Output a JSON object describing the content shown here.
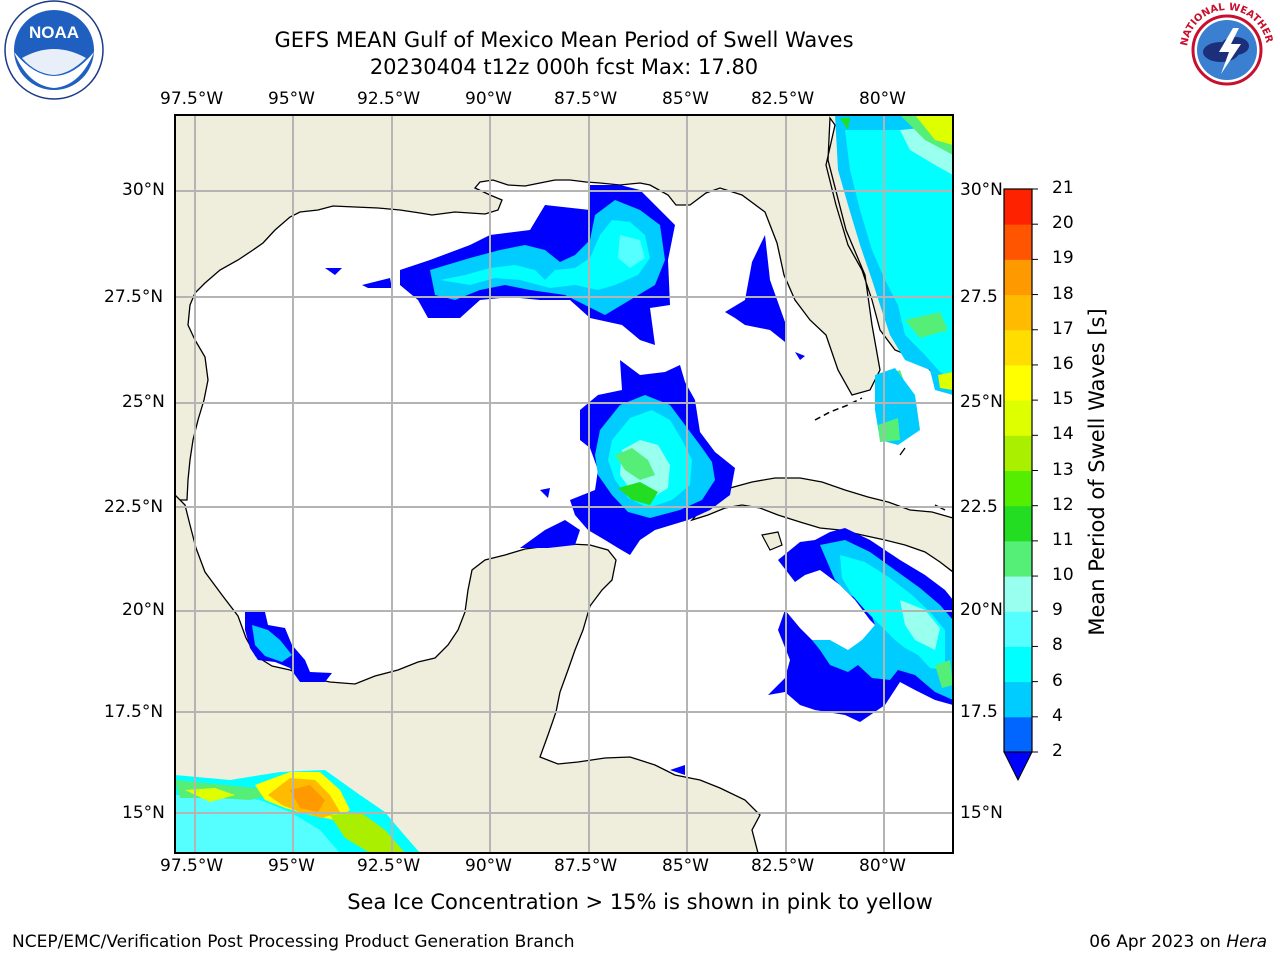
{
  "title": {
    "line1": "GEFS MEAN Gulf of Mexico Mean Period of Swell Waves",
    "line2": "20230404 t12z 000h fcst   Max: 17.80"
  },
  "map": {
    "lon_labels": [
      "97.5°W",
      "95°W",
      "92.5°W",
      "90°W",
      "87.5°W",
      "85°W",
      "82.5°W",
      "80°W"
    ],
    "lat_labels_left": [
      "30°N",
      "27.5°N",
      "25°N",
      "22.5°N",
      "20°N",
      "17.5°N",
      "15°N"
    ],
    "lat_labels_right": [
      "30°N",
      "27.5",
      "25°N",
      "22.5",
      "20°N",
      "17.5",
      "15°N"
    ],
    "extent": {
      "lon_min": -98,
      "lon_max": -78.3,
      "lat_min": 14,
      "lat_max": 31.8
    },
    "colors": {
      "land": "#efeedc",
      "ocean": "#ffffff",
      "grid": "#b4b4b4",
      "coast": "#000000"
    }
  },
  "colorbar": {
    "label": "Mean Period of Swell Waves [s]",
    "ticks": [
      "2",
      "4",
      "6",
      "8",
      "9",
      "10",
      "11",
      "12",
      "13",
      "14",
      "15",
      "16",
      "17",
      "18",
      "19",
      "20",
      "21"
    ],
    "colors": [
      "#0066ff",
      "#00ccff",
      "#00ffff",
      "#55ffff",
      "#99ffee",
      "#55ee77",
      "#22dd22",
      "#55ee00",
      "#aaee00",
      "#ddff00",
      "#ffff00",
      "#ffdd00",
      "#ffbb00",
      "#ff9900",
      "#ff5500",
      "#ff2200",
      "#ff0000"
    ],
    "under_color": "#0000ff"
  },
  "annotation": "Sea Ice Concentration > 15% is shown in pink to yellow",
  "footer": {
    "left": "NCEP/EMC/Verification Post Processing Product Generation Branch",
    "right_date": "06 Apr 2023 on ",
    "right_machine": "Hera"
  },
  "logos": {
    "left": {
      "icon": "noaa-logo",
      "text": "NOAA"
    },
    "right": {
      "icon": "nws-logo",
      "text": "NATIONAL WEATHER SERVICE"
    }
  }
}
